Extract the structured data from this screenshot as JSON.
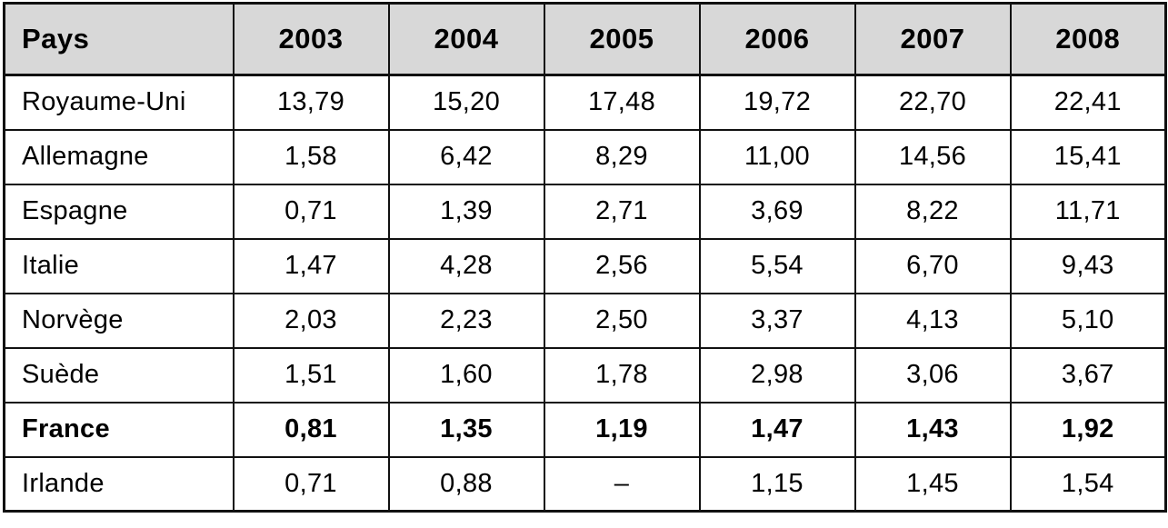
{
  "colors": {
    "header_bg": "#d8d8d8",
    "border_color": "#111111",
    "text_color": "#000000"
  },
  "table": {
    "columns": [
      "Pays",
      "2003",
      "2004",
      "2005",
      "2006",
      "2007",
      "2008"
    ],
    "rows": [
      {
        "country": "Royaume-Uni",
        "values": [
          "13,79",
          "15,20",
          "17,48",
          "19,72",
          "22,70",
          "22,41"
        ]
      },
      {
        "country": "Allemagne",
        "values": [
          "1,58",
          "6,42",
          "8,29",
          "11,00",
          "14,56",
          "15,41"
        ]
      },
      {
        "country": "Espagne",
        "values": [
          "0,71",
          "1,39",
          "2,71",
          "3,69",
          "8,22",
          "11,71"
        ]
      },
      {
        "country": "Italie",
        "values": [
          "1,47",
          "4,28",
          "2,56",
          "5,54",
          "6,70",
          "9,43"
        ]
      },
      {
        "country": "Norvège",
        "values": [
          "2,03",
          "2,23",
          "2,50",
          "3,37",
          "4,13",
          "5,10"
        ]
      },
      {
        "country": "Suède",
        "values": [
          "1,51",
          "1,60",
          "1,78",
          "2,98",
          "3,06",
          "3,67"
        ]
      },
      {
        "country": "France",
        "values": [
          "0,81",
          "1,35",
          "1,19",
          "1,47",
          "1,43",
          "1,92"
        ]
      },
      {
        "country": "Irlande",
        "values": [
          "0,71",
          "0,88",
          "–",
          "1,15",
          "1,45",
          "1,54"
        ]
      }
    ]
  },
  "chart_data": {
    "type": "table",
    "title": "",
    "categories": [
      "2003",
      "2004",
      "2005",
      "2006",
      "2007",
      "2008"
    ],
    "series": [
      {
        "name": "Royaume-Uni",
        "values": [
          13.79,
          15.2,
          17.48,
          19.72,
          22.7,
          22.41
        ]
      },
      {
        "name": "Allemagne",
        "values": [
          1.58,
          6.42,
          8.29,
          11.0,
          14.56,
          15.41
        ]
      },
      {
        "name": "Espagne",
        "values": [
          0.71,
          1.39,
          2.71,
          3.69,
          8.22,
          11.71
        ]
      },
      {
        "name": "Italie",
        "values": [
          1.47,
          4.28,
          2.56,
          5.54,
          6.7,
          9.43
        ]
      },
      {
        "name": "Norvège",
        "values": [
          2.03,
          2.23,
          2.5,
          3.37,
          4.13,
          5.1
        ]
      },
      {
        "name": "Suède",
        "values": [
          1.51,
          1.6,
          1.78,
          2.98,
          3.06,
          3.67
        ]
      },
      {
        "name": "France",
        "values": [
          0.81,
          1.35,
          1.19,
          1.47,
          1.43,
          1.92
        ]
      },
      {
        "name": "Irlande",
        "values": [
          0.71,
          0.88,
          null,
          1.15,
          1.45,
          1.54
        ]
      }
    ]
  }
}
